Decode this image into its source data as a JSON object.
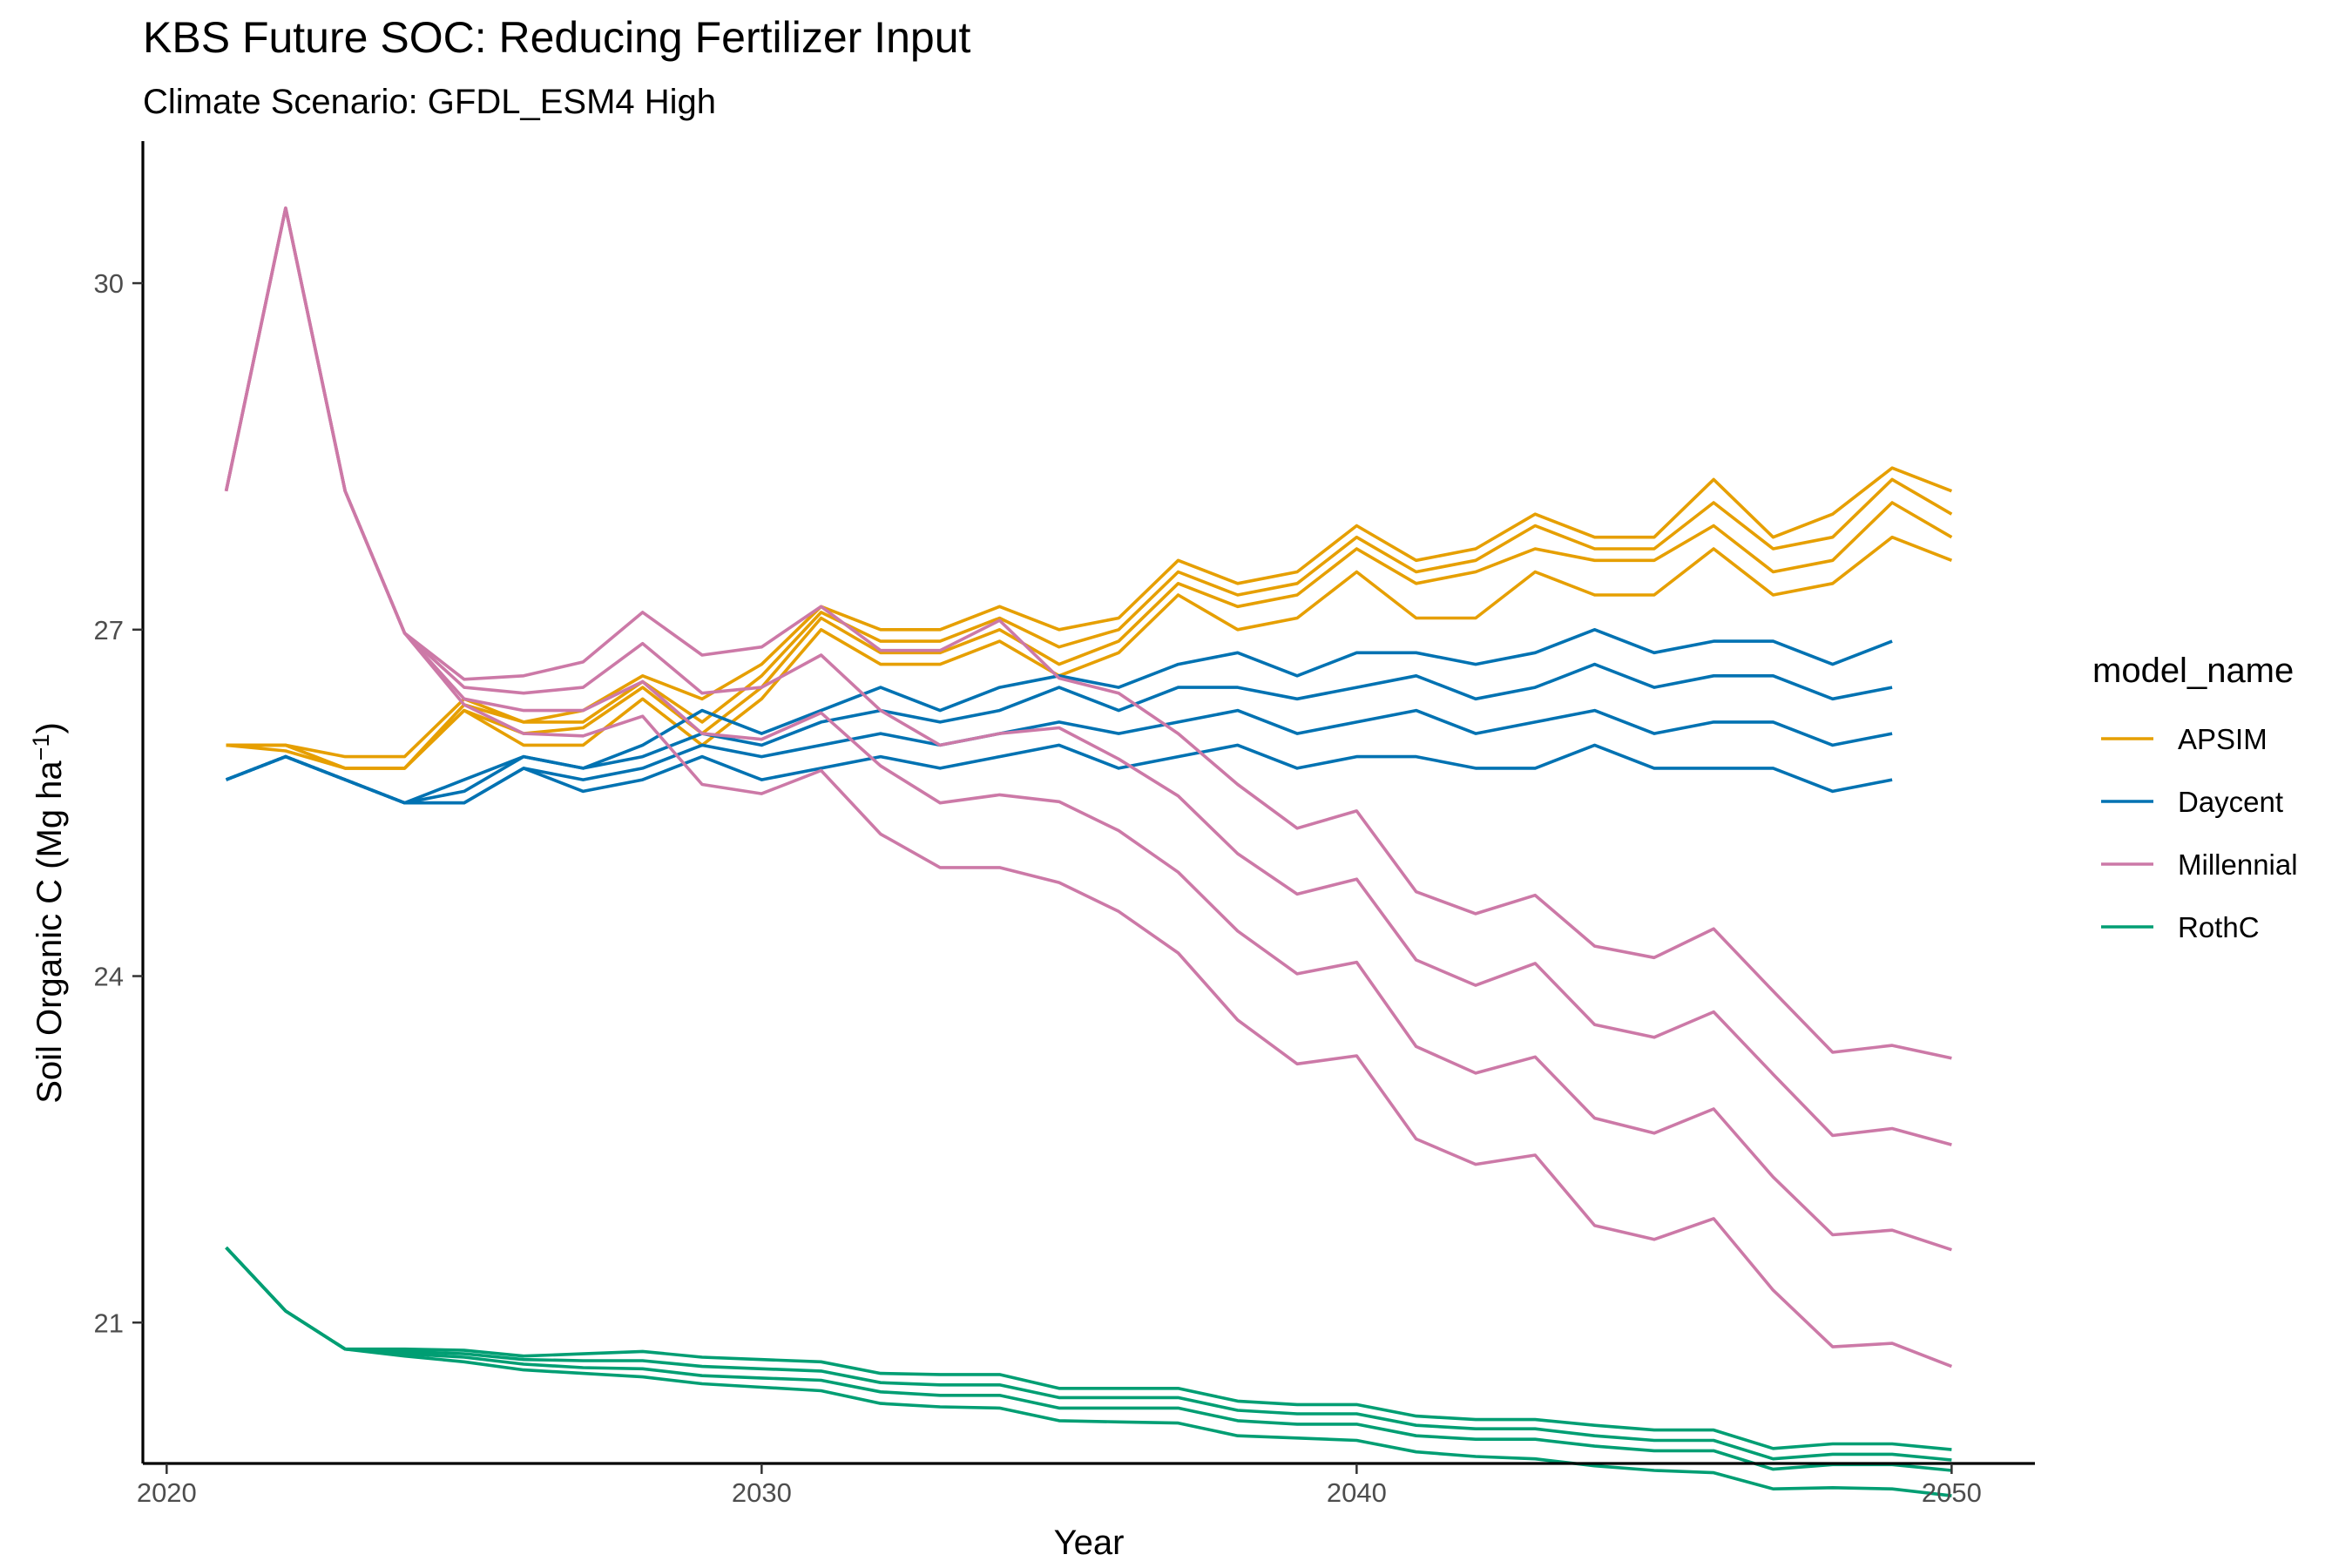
{
  "chart_data": {
    "type": "line",
    "title": "KBS  Future SOC: Reducing Fertilizer Input",
    "subtitle": "Climate Scenario: GFDL_ESM4 High",
    "xlabel": "Year",
    "ylabel": "Soil Organic C (Mg ha",
    "ylabel_sup": "−1",
    "ylabel_close": ")",
    "xlim": [
      2019.6,
      2051.4
    ],
    "ylim": [
      19.78,
      31.23
    ],
    "x_ticks": [
      2020,
      2030,
      2040,
      2050
    ],
    "x_tick_labels": [
      "2020",
      "2030",
      "2040",
      "2050"
    ],
    "y_ticks": [
      21,
      24,
      27,
      30
    ],
    "y_tick_labels": [
      "21",
      "24",
      "27",
      "30"
    ],
    "grid": false,
    "legend": {
      "title": "model_name",
      "position": "right"
    },
    "colors": {
      "APSIM": "#E69F00",
      "Daycent": "#0072B2",
      "Millennial": "#CC79A7",
      "RothC": "#009E73"
    },
    "series": [
      {
        "name": "APSIM",
        "x": [
          2021,
          2022,
          2023,
          2024,
          2025,
          2026,
          2027,
          2028,
          2029,
          2030,
          2031,
          2032,
          2033,
          2034,
          2035,
          2036,
          2037,
          2038,
          2039,
          2040,
          2041,
          2042,
          2043,
          2044,
          2045,
          2046,
          2047,
          2048,
          2049,
          2050
        ],
        "values": [
          26.0,
          26.0,
          25.9,
          25.9,
          26.4,
          26.2,
          26.3,
          26.6,
          26.4,
          26.7,
          27.2,
          27.0,
          27.0,
          27.2,
          27.0,
          27.1,
          27.6,
          27.4,
          27.5,
          27.9,
          27.6,
          27.7,
          28.0,
          27.8,
          27.8,
          28.3,
          27.8,
          28.0,
          28.4,
          28.2
        ]
      },
      {
        "name": "APSIM",
        "x": [
          2021,
          2022,
          2023,
          2024,
          2025,
          2026,
          2027,
          2028,
          2029,
          2030,
          2031,
          2032,
          2033,
          2034,
          2035,
          2036,
          2037,
          2038,
          2039,
          2040,
          2041,
          2042,
          2043,
          2044,
          2045,
          2046,
          2047,
          2048,
          2049,
          2050
        ],
        "values": [
          26.0,
          26.0,
          25.8,
          25.8,
          26.35,
          26.2,
          26.2,
          26.55,
          26.2,
          26.6,
          27.15,
          26.9,
          26.9,
          27.1,
          26.85,
          27.0,
          27.5,
          27.3,
          27.4,
          27.8,
          27.5,
          27.6,
          27.9,
          27.7,
          27.7,
          28.1,
          27.7,
          27.8,
          28.3,
          28.0
        ]
      },
      {
        "name": "APSIM",
        "x": [
          2021,
          2022,
          2023,
          2024,
          2025,
          2026,
          2027,
          2028,
          2029,
          2030,
          2031,
          2032,
          2033,
          2034,
          2035,
          2036,
          2037,
          2038,
          2039,
          2040,
          2041,
          2042,
          2043,
          2044,
          2045,
          2046,
          2047,
          2048,
          2049,
          2050
        ],
        "values": [
          26.0,
          26.0,
          25.8,
          25.8,
          26.3,
          26.1,
          26.15,
          26.5,
          26.1,
          26.5,
          27.1,
          26.8,
          26.8,
          27.0,
          26.7,
          26.9,
          27.4,
          27.2,
          27.3,
          27.7,
          27.4,
          27.5,
          27.7,
          27.6,
          27.6,
          27.9,
          27.5,
          27.6,
          28.1,
          27.8
        ]
      },
      {
        "name": "APSIM",
        "x": [
          2021,
          2022,
          2023,
          2024,
          2025,
          2026,
          2027,
          2028,
          2029,
          2030,
          2031,
          2032,
          2033,
          2034,
          2035,
          2036,
          2037,
          2038,
          2039,
          2040,
          2041,
          2042,
          2043,
          2044,
          2045,
          2046,
          2047,
          2048,
          2049,
          2050
        ],
        "values": [
          26.0,
          25.95,
          25.8,
          25.8,
          26.3,
          26.0,
          26.0,
          26.4,
          26.0,
          26.4,
          27.0,
          26.7,
          26.7,
          26.9,
          26.6,
          26.8,
          27.3,
          27.0,
          27.1,
          27.5,
          27.1,
          27.1,
          27.5,
          27.3,
          27.3,
          27.7,
          27.3,
          27.4,
          27.8,
          27.6
        ]
      },
      {
        "name": "Daycent",
        "x": [
          2021,
          2022,
          2023,
          2024,
          2025,
          2026,
          2027,
          2028,
          2029,
          2030,
          2031,
          2032,
          2033,
          2034,
          2035,
          2036,
          2037,
          2038,
          2039,
          2040,
          2041,
          2042,
          2043,
          2044,
          2045,
          2046,
          2047,
          2048,
          2049
        ],
        "values": [
          25.7,
          25.9,
          25.7,
          25.5,
          25.7,
          25.9,
          25.8,
          26.0,
          26.3,
          26.1,
          26.3,
          26.5,
          26.3,
          26.5,
          26.6,
          26.5,
          26.7,
          26.8,
          26.6,
          26.8,
          26.8,
          26.7,
          26.8,
          27.0,
          26.8,
          26.9,
          26.9,
          26.7,
          26.9
        ]
      },
      {
        "name": "Daycent",
        "x": [
          2021,
          2022,
          2023,
          2024,
          2025,
          2026,
          2027,
          2028,
          2029,
          2030,
          2031,
          2032,
          2033,
          2034,
          2035,
          2036,
          2037,
          2038,
          2039,
          2040,
          2041,
          2042,
          2043,
          2044,
          2045,
          2046,
          2047,
          2048,
          2049
        ],
        "values": [
          25.7,
          25.9,
          25.7,
          25.5,
          25.6,
          25.9,
          25.8,
          25.9,
          26.1,
          26.0,
          26.2,
          26.3,
          26.2,
          26.3,
          26.5,
          26.3,
          26.5,
          26.5,
          26.4,
          26.5,
          26.6,
          26.4,
          26.5,
          26.7,
          26.5,
          26.6,
          26.6,
          26.4,
          26.5
        ]
      },
      {
        "name": "Daycent",
        "x": [
          2021,
          2022,
          2023,
          2024,
          2025,
          2026,
          2027,
          2028,
          2029,
          2030,
          2031,
          2032,
          2033,
          2034,
          2035,
          2036,
          2037,
          2038,
          2039,
          2040,
          2041,
          2042,
          2043,
          2044,
          2045,
          2046,
          2047,
          2048,
          2049
        ],
        "values": [
          25.7,
          25.9,
          25.7,
          25.5,
          25.5,
          25.8,
          25.7,
          25.8,
          26.0,
          25.9,
          26.0,
          26.1,
          26.0,
          26.1,
          26.2,
          26.1,
          26.2,
          26.3,
          26.1,
          26.2,
          26.3,
          26.1,
          26.2,
          26.3,
          26.1,
          26.2,
          26.2,
          26.0,
          26.1
        ]
      },
      {
        "name": "Daycent",
        "x": [
          2021,
          2022,
          2023,
          2024,
          2025,
          2026,
          2027,
          2028,
          2029,
          2030,
          2031,
          2032,
          2033,
          2034,
          2035,
          2036,
          2037,
          2038,
          2039,
          2040,
          2041,
          2042,
          2043,
          2044,
          2045,
          2046,
          2047,
          2048,
          2049
        ],
        "values": [
          25.7,
          25.9,
          25.7,
          25.5,
          25.5,
          25.8,
          25.6,
          25.7,
          25.9,
          25.7,
          25.8,
          25.9,
          25.8,
          25.9,
          26.0,
          25.8,
          25.9,
          26.0,
          25.8,
          25.9,
          25.9,
          25.8,
          25.8,
          26.0,
          25.8,
          25.8,
          25.8,
          25.6,
          25.7
        ]
      },
      {
        "name": "Millennial",
        "x": [
          2021,
          2022,
          2023,
          2024,
          2025,
          2026,
          2027,
          2028,
          2029,
          2030,
          2031,
          2032,
          2033,
          2034,
          2035,
          2036,
          2037,
          2038,
          2039,
          2040,
          2041,
          2042,
          2043,
          2044,
          2045,
          2046,
          2047,
          2048,
          2049,
          2050
        ],
        "values": [
          28.2,
          30.65,
          28.2,
          26.97,
          26.57,
          26.6,
          26.72,
          27.15,
          26.78,
          26.85,
          27.2,
          26.82,
          26.82,
          27.08,
          26.58,
          26.45,
          26.1,
          25.66,
          25.28,
          25.43,
          24.73,
          24.54,
          24.7,
          24.26,
          24.16,
          24.41,
          23.87,
          23.34,
          23.4,
          23.29
        ]
      },
      {
        "name": "Millennial",
        "x": [
          2021,
          2022,
          2023,
          2024,
          2025,
          2026,
          2027,
          2028,
          2029,
          2030,
          2031,
          2032,
          2033,
          2034,
          2035,
          2036,
          2037,
          2038,
          2039,
          2040,
          2041,
          2042,
          2043,
          2044,
          2045,
          2046,
          2047,
          2048,
          2049,
          2050
        ],
        "values": [
          28.2,
          30.65,
          28.2,
          26.97,
          26.5,
          26.45,
          26.5,
          26.88,
          26.45,
          26.5,
          26.78,
          26.3,
          26.0,
          26.1,
          26.15,
          25.88,
          25.56,
          25.06,
          24.71,
          24.84,
          24.14,
          23.92,
          24.11,
          23.58,
          23.47,
          23.69,
          23.15,
          22.62,
          22.68,
          22.54
        ]
      },
      {
        "name": "Millennial",
        "x": [
          2021,
          2022,
          2023,
          2024,
          2025,
          2026,
          2027,
          2028,
          2029,
          2030,
          2031,
          2032,
          2033,
          2034,
          2035,
          2036,
          2037,
          2038,
          2039,
          2040,
          2041,
          2042,
          2043,
          2044,
          2045,
          2046,
          2047,
          2048,
          2049,
          2050
        ],
        "values": [
          28.2,
          30.65,
          28.2,
          26.97,
          26.4,
          26.3,
          26.3,
          26.55,
          26.1,
          26.05,
          26.28,
          25.82,
          25.5,
          25.57,
          25.51,
          25.26,
          24.9,
          24.39,
          24.02,
          24.12,
          23.39,
          23.16,
          23.3,
          22.77,
          22.64,
          22.85,
          22.26,
          21.76,
          21.8,
          21.63
        ]
      },
      {
        "name": "Millennial",
        "x": [
          2021,
          2022,
          2023,
          2024,
          2025,
          2026,
          2027,
          2028,
          2029,
          2030,
          2031,
          2032,
          2033,
          2034,
          2035,
          2036,
          2037,
          2038,
          2039,
          2040,
          2041,
          2042,
          2043,
          2044,
          2045,
          2046,
          2047,
          2048,
          2049,
          2050
        ],
        "values": [
          28.2,
          30.65,
          28.2,
          26.97,
          26.35,
          26.1,
          26.08,
          26.25,
          25.66,
          25.58,
          25.78,
          25.23,
          24.94,
          24.94,
          24.81,
          24.56,
          24.2,
          23.62,
          23.24,
          23.31,
          22.59,
          22.37,
          22.45,
          21.84,
          21.72,
          21.9,
          21.28,
          20.79,
          20.82,
          20.62
        ]
      },
      {
        "name": "RothC",
        "x": [
          2021,
          2022,
          2023,
          2024,
          2025,
          2026,
          2027,
          2028,
          2029,
          2030,
          2031,
          2032,
          2033,
          2034,
          2035,
          2036,
          2037,
          2038,
          2039,
          2040,
          2041,
          2042,
          2043,
          2044,
          2045,
          2046,
          2047,
          2048,
          2049,
          2050
        ],
        "values": [
          21.65,
          21.1,
          20.77,
          20.77,
          20.76,
          20.71,
          20.73,
          20.75,
          20.7,
          20.68,
          20.66,
          20.56,
          20.55,
          20.55,
          20.43,
          20.43,
          20.43,
          20.32,
          20.29,
          20.29,
          20.19,
          20.16,
          20.16,
          20.11,
          20.07,
          20.07,
          19.91,
          19.95,
          19.95,
          19.9
        ]
      },
      {
        "name": "RothC",
        "x": [
          2021,
          2022,
          2023,
          2024,
          2025,
          2026,
          2027,
          2028,
          2029,
          2030,
          2031,
          2032,
          2033,
          2034,
          2035,
          2036,
          2037,
          2038,
          2039,
          2040,
          2041,
          2042,
          2043,
          2044,
          2045,
          2046,
          2047,
          2048,
          2049,
          2050
        ],
        "values": [
          21.65,
          21.1,
          20.77,
          20.75,
          20.73,
          20.68,
          20.67,
          20.67,
          20.62,
          20.6,
          20.58,
          20.48,
          20.46,
          20.46,
          20.35,
          20.35,
          20.35,
          20.24,
          20.21,
          20.21,
          20.11,
          20.08,
          20.08,
          20.02,
          19.98,
          19.98,
          19.82,
          19.86,
          19.86,
          19.81
        ]
      },
      {
        "name": "RothC",
        "x": [
          2021,
          2022,
          2023,
          2024,
          2025,
          2026,
          2027,
          2028,
          2029,
          2030,
          2031,
          2032,
          2033,
          2034,
          2035,
          2036,
          2037,
          2038,
          2039,
          2040,
          2041,
          2042,
          2043,
          2044,
          2045,
          2046,
          2047,
          2048,
          2049,
          2050
        ],
        "values": [
          21.65,
          21.1,
          20.77,
          20.73,
          20.7,
          20.64,
          20.61,
          20.6,
          20.54,
          20.52,
          20.5,
          20.4,
          20.37,
          20.37,
          20.26,
          20.26,
          20.26,
          20.15,
          20.12,
          20.12,
          20.02,
          19.99,
          19.99,
          19.93,
          19.89,
          19.89,
          19.73,
          19.77,
          19.77,
          19.72
        ]
      },
      {
        "name": "RothC",
        "x": [
          2021,
          2022,
          2023,
          2024,
          2025,
          2026,
          2027,
          2028,
          2029,
          2030,
          2031,
          2032,
          2033,
          2034,
          2035,
          2036,
          2037,
          2038,
          2039,
          2040,
          2041,
          2042,
          2043,
          2044,
          2045,
          2046,
          2047,
          2048,
          2049,
          2050
        ],
        "values": [
          21.65,
          21.1,
          20.77,
          20.71,
          20.66,
          20.59,
          20.56,
          20.53,
          20.47,
          20.44,
          20.41,
          20.3,
          20.27,
          20.26,
          20.15,
          20.14,
          20.13,
          20.02,
          20.0,
          19.98,
          19.88,
          19.84,
          19.82,
          19.76,
          19.72,
          19.7,
          19.56,
          19.57,
          19.56,
          19.5
        ]
      }
    ]
  }
}
